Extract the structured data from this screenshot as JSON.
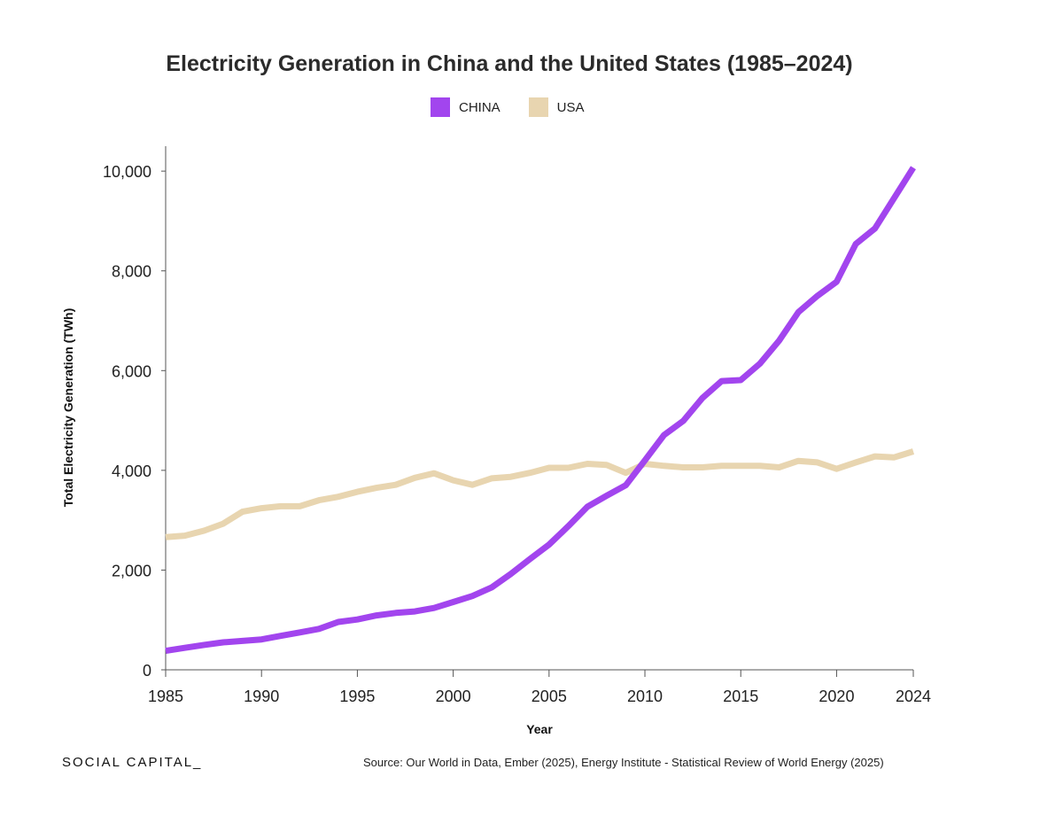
{
  "chart_data": {
    "type": "line",
    "title": "Electricity Generation in China and the United States (1985–2024)",
    "xlabel": "Year",
    "ylabel": "Total Electricity Generation (TWh)",
    "xlim": [
      1985,
      2024
    ],
    "ylim": [
      0,
      10500
    ],
    "xticks": [
      1985,
      1990,
      1995,
      2000,
      2005,
      2010,
      2015,
      2020,
      2024
    ],
    "xtick_labels": [
      "1985",
      "1990",
      "1995",
      "2000",
      "2005",
      "2010",
      "2015",
      "2020",
      "2024"
    ],
    "yticks": [
      0,
      2000,
      4000,
      6000,
      8000,
      10000
    ],
    "ytick_labels": [
      "0",
      "2,000",
      "4,000",
      "6,000",
      "8,000",
      "10,000"
    ],
    "grid": false,
    "legend_position": "top-center",
    "x": [
      1985,
      1986,
      1987,
      1988,
      1989,
      1990,
      1991,
      1992,
      1993,
      1994,
      1995,
      1996,
      1997,
      1998,
      1999,
      2000,
      2001,
      2002,
      2003,
      2004,
      2005,
      2006,
      2007,
      2008,
      2009,
      2010,
      2011,
      2012,
      2013,
      2014,
      2015,
      2016,
      2017,
      2018,
      2019,
      2020,
      2021,
      2022,
      2023,
      2024
    ],
    "series": [
      {
        "name": "CHINA",
        "color": "#a245ee",
        "values": [
          380,
          440,
          500,
          550,
          580,
          610,
          680,
          750,
          820,
          960,
          1010,
          1090,
          1140,
          1170,
          1240,
          1360,
          1480,
          1650,
          1920,
          2220,
          2510,
          2880,
          3270,
          3490,
          3700,
          4200,
          4710,
          4990,
          5450,
          5790,
          5810,
          6140,
          6600,
          7170,
          7500,
          7780,
          8540,
          8850,
          9460,
          10070
        ]
      },
      {
        "name": "USA",
        "color": "#e8d5b0",
        "values": [
          2660,
          2690,
          2790,
          2930,
          3170,
          3240,
          3280,
          3280,
          3400,
          3470,
          3570,
          3650,
          3710,
          3850,
          3940,
          3800,
          3710,
          3840,
          3870,
          3950,
          4050,
          4050,
          4130,
          4110,
          3950,
          4130,
          4090,
          4060,
          4060,
          4090,
          4090,
          4090,
          4060,
          4190,
          4160,
          4030,
          4160,
          4280,
          4260,
          4380
        ]
      }
    ]
  },
  "footer": {
    "brand": "SOCIAL CAPITAL_",
    "source": "Source: Our World in Data, Ember (2025), Energy Institute - Statistical Review of World Energy (2025)"
  }
}
